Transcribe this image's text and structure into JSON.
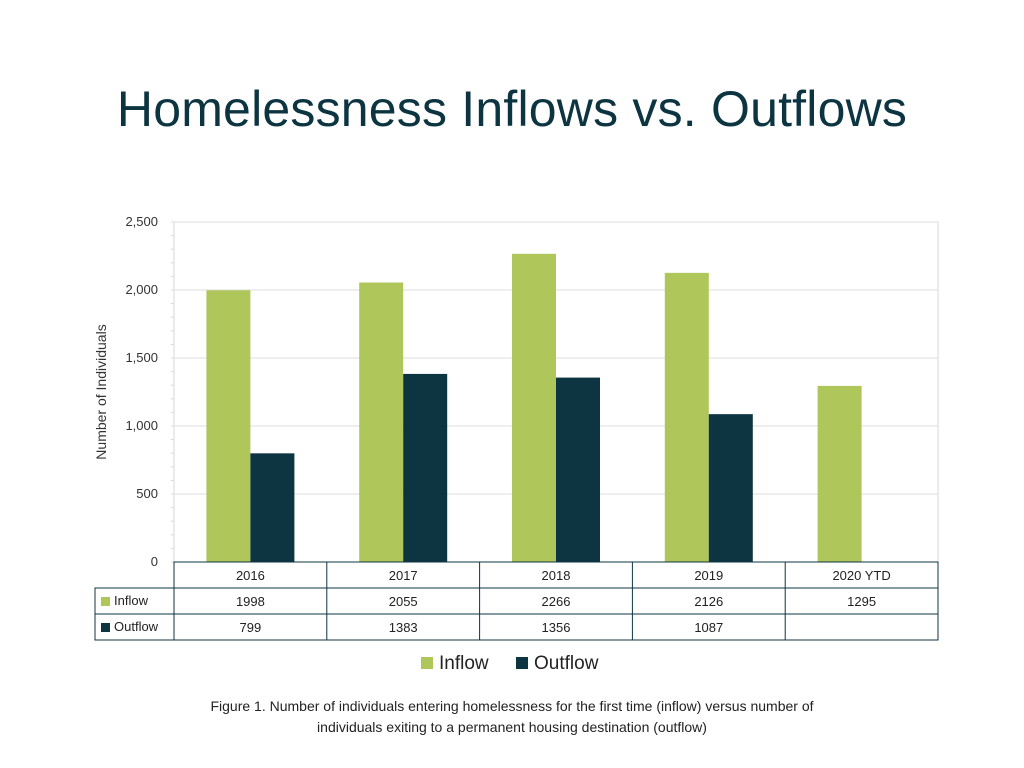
{
  "slide": {
    "title": "Homelessness Inflows vs. Outflows",
    "caption_line1": "Figure 1.  Number of individuals entering homelessness for the first time (inflow) versus number of",
    "caption_line2": "individuals exiting to a permanent housing destination (outflow)"
  },
  "chart_data": {
    "type": "bar",
    "title": "",
    "xlabel": "",
    "ylabel": "Number of Individuals",
    "ylim": [
      0,
      2500
    ],
    "yticks": [
      0,
      500,
      1000,
      1500,
      2000,
      2500
    ],
    "ytick_labels": [
      "0",
      "500",
      "1,000",
      "1,500",
      "2,000",
      "2,500"
    ],
    "categories": [
      "2016",
      "2017",
      "2018",
      "2019",
      "2020 YTD"
    ],
    "series": [
      {
        "name": "Inflow",
        "color": "#aec65a",
        "values": [
          1998,
          2055,
          2266,
          2126,
          1295
        ]
      },
      {
        "name": "Outflow",
        "color": "#0c3441",
        "values": [
          799,
          1383,
          1356,
          1087,
          null
        ]
      }
    ],
    "data_table": true,
    "grid": true,
    "legend_position": "bottom"
  }
}
